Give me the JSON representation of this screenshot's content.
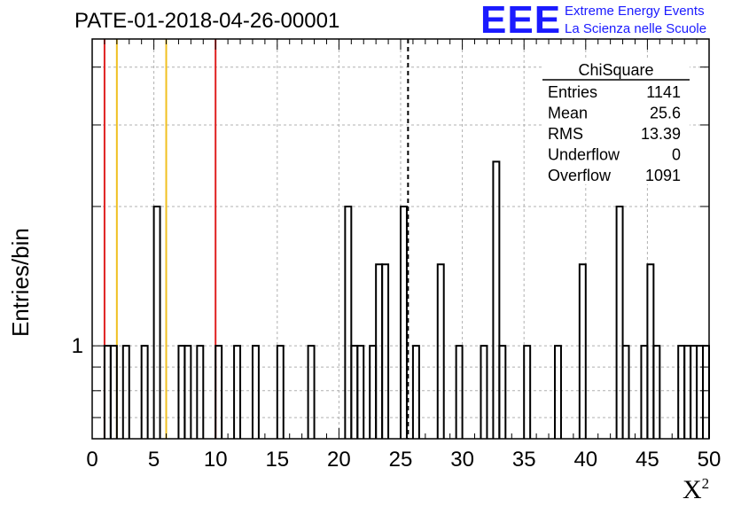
{
  "title": "PATE-01-2018-04-26-00001",
  "logo": {
    "mark": "EEE",
    "line1": "Extreme Energy Events",
    "line2": "La Scienza nelle Scuole",
    "color": "#1a1aff"
  },
  "chart_data": {
    "type": "histogram",
    "title": "PATE-01-2018-04-26-00001",
    "xlabel": "X",
    "xlabel_sup": "2",
    "ylabel": "Entries/bin",
    "xlim": [
      0,
      50
    ],
    "ylim": [
      0.63,
      4.6
    ],
    "log_y": true,
    "grid": true,
    "x_ticks": [
      0,
      5,
      10,
      15,
      20,
      25,
      30,
      35,
      40,
      45,
      50
    ],
    "y_tick_labels": [
      {
        "value": 1,
        "label": "1"
      }
    ],
    "bin_width": 0.5,
    "bins": [
      {
        "x": 1.0,
        "v": 1
      },
      {
        "x": 1.5,
        "v": 1
      },
      {
        "x": 2.5,
        "v": 1
      },
      {
        "x": 4.0,
        "v": 1
      },
      {
        "x": 5.0,
        "v": 2
      },
      {
        "x": 7.0,
        "v": 1
      },
      {
        "x": 7.5,
        "v": 1
      },
      {
        "x": 8.5,
        "v": 1
      },
      {
        "x": 10.0,
        "v": 1
      },
      {
        "x": 11.5,
        "v": 1
      },
      {
        "x": 13.0,
        "v": 1
      },
      {
        "x": 15.0,
        "v": 1
      },
      {
        "x": 17.5,
        "v": 1
      },
      {
        "x": 20.5,
        "v": 2
      },
      {
        "x": 21.0,
        "v": 1
      },
      {
        "x": 21.5,
        "v": 1
      },
      {
        "x": 22.5,
        "v": 1
      },
      {
        "x": 23.0,
        "v": 1.5
      },
      {
        "x": 23.5,
        "v": 1.5
      },
      {
        "x": 25.0,
        "v": 2
      },
      {
        "x": 26.0,
        "v": 1
      },
      {
        "x": 28.0,
        "v": 1.5
      },
      {
        "x": 29.5,
        "v": 1
      },
      {
        "x": 31.5,
        "v": 1
      },
      {
        "x": 32.5,
        "v": 2.5
      },
      {
        "x": 33.0,
        "v": 1
      },
      {
        "x": 35.0,
        "v": 1
      },
      {
        "x": 37.5,
        "v": 1
      },
      {
        "x": 39.5,
        "v": 1.5
      },
      {
        "x": 42.5,
        "v": 2
      },
      {
        "x": 43.0,
        "v": 1
      },
      {
        "x": 44.5,
        "v": 1
      },
      {
        "x": 45.0,
        "v": 1.5
      },
      {
        "x": 45.5,
        "v": 1
      },
      {
        "x": 47.5,
        "v": 1
      },
      {
        "x": 48.0,
        "v": 1
      },
      {
        "x": 48.5,
        "v": 1
      },
      {
        "x": 49.0,
        "v": 1
      },
      {
        "x": 49.5,
        "v": 1
      }
    ],
    "reference_lines": [
      {
        "x": 1.0,
        "color": "#e02020",
        "style": "solid"
      },
      {
        "x": 2.0,
        "color": "#f0c020",
        "style": "solid"
      },
      {
        "x": 6.0,
        "color": "#f0c020",
        "style": "solid"
      },
      {
        "x": 10.0,
        "color": "#e02020",
        "style": "solid"
      },
      {
        "x": 25.6,
        "color": "#000000",
        "style": "dashed"
      }
    ],
    "stats_box": {
      "name": "ChiSquare",
      "rows": [
        {
          "label": "Entries",
          "value": "1141"
        },
        {
          "label": "Mean",
          "value": "25.6"
        },
        {
          "label": "RMS",
          "value": "13.39"
        },
        {
          "label": "Underflow",
          "value": "0"
        },
        {
          "label": "Overflow",
          "value": "1091"
        }
      ]
    }
  }
}
